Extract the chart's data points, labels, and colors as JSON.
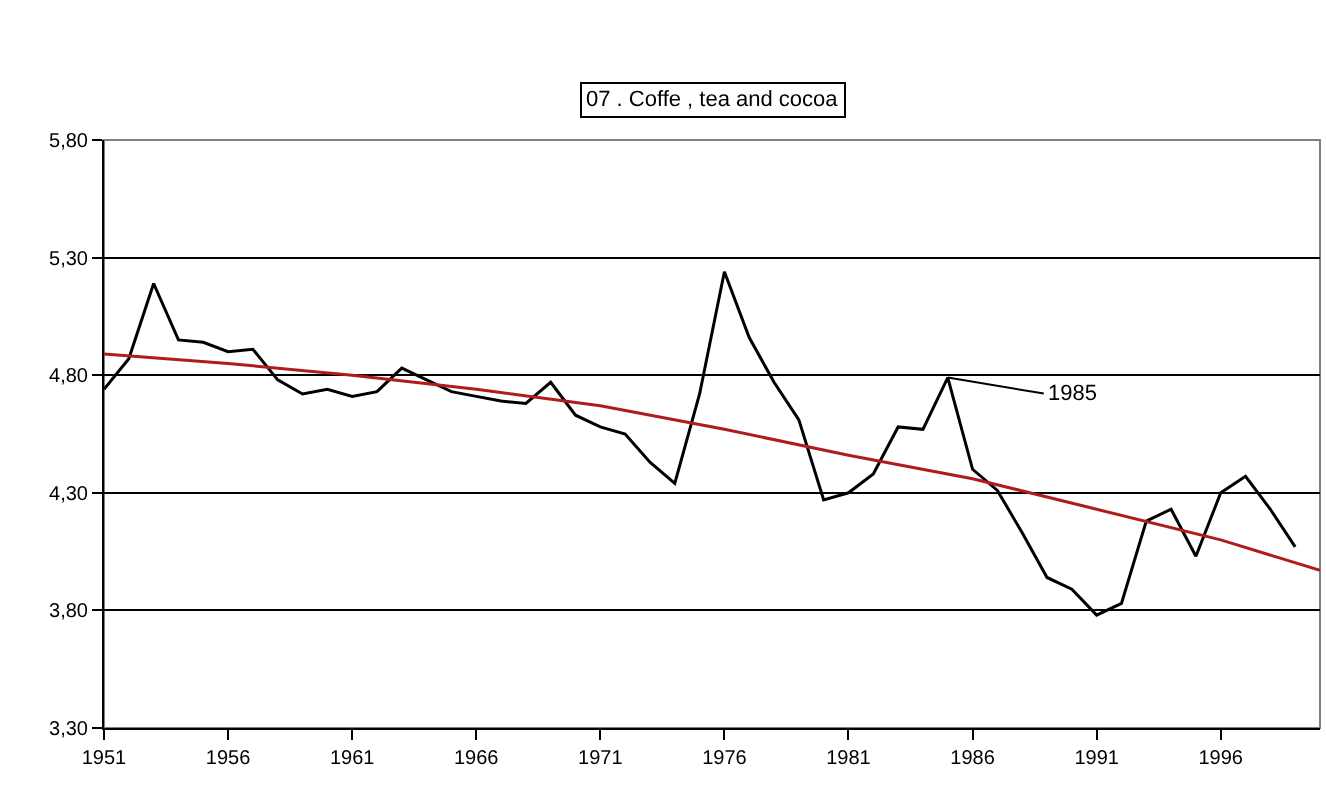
{
  "chart_data": {
    "type": "line",
    "title": "07 . Coffe , tea and cocoa",
    "x": [
      1951,
      1952,
      1953,
      1954,
      1955,
      1956,
      1957,
      1958,
      1959,
      1960,
      1961,
      1962,
      1963,
      1964,
      1965,
      1966,
      1967,
      1968,
      1969,
      1970,
      1971,
      1972,
      1973,
      1974,
      1975,
      1976,
      1977,
      1978,
      1979,
      1980,
      1981,
      1982,
      1983,
      1984,
      1985,
      1986,
      1987,
      1988,
      1989,
      1990,
      1991,
      1992,
      1993,
      1994,
      1995,
      1996,
      1997,
      1998,
      1999
    ],
    "series": [
      {
        "color": "#000000",
        "line_style": "solid",
        "values": [
          4.74,
          4.87,
          5.19,
          4.95,
          4.94,
          4.9,
          4.91,
          4.78,
          4.72,
          4.74,
          4.71,
          4.73,
          4.83,
          4.78,
          4.73,
          4.71,
          4.69,
          4.68,
          4.77,
          4.63,
          4.58,
          4.55,
          4.43,
          4.34,
          4.72,
          5.24,
          4.96,
          4.77,
          4.61,
          4.27,
          4.3,
          4.38,
          4.58,
          4.57,
          4.79,
          4.4,
          4.31,
          4.13,
          3.94,
          3.89,
          3.78,
          3.83,
          4.18,
          4.23,
          4.03,
          4.3,
          4.37,
          4.23,
          4.07
        ]
      },
      {
        "color": "#b01c1c",
        "line_style": "solid",
        "x": [
          1951,
          1956,
          1961,
          1966,
          1971,
          1976,
          1981,
          1986,
          1991,
          1996,
          2000
        ],
        "values": [
          4.89,
          4.85,
          4.8,
          4.74,
          4.67,
          4.57,
          4.46,
          4.36,
          4.23,
          4.1,
          3.97
        ]
      }
    ],
    "annotations": [
      {
        "text": "1985",
        "x": 1985,
        "y": 4.79
      }
    ],
    "xlim": [
      1951,
      2000
    ],
    "xticks": [
      1951,
      1956,
      1961,
      1966,
      1971,
      1976,
      1981,
      1986,
      1991,
      1996
    ],
    "ylim": [
      3.3,
      5.8
    ],
    "yticks": [
      {
        "value": 3.3,
        "label": "3,30"
      },
      {
        "value": 3.8,
        "label": "3,80"
      },
      {
        "value": 4.3,
        "label": "4,30"
      },
      {
        "value": 4.8,
        "label": "4,80"
      },
      {
        "value": 5.3,
        "label": "5,30"
      },
      {
        "value": 5.8,
        "label": "5,80"
      }
    ],
    "grid": "y"
  }
}
